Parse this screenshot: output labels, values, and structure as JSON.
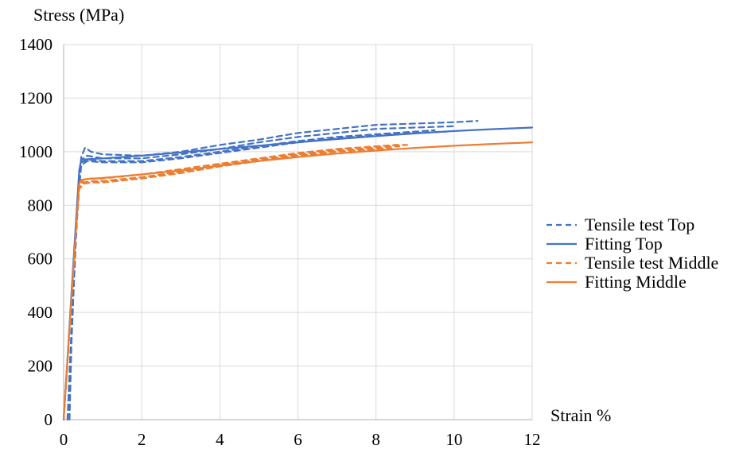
{
  "chart_data": {
    "type": "line",
    "title": "",
    "ylabel": "Stress (MPa)",
    "xlabel": "Strain %",
    "xlim": [
      0,
      12
    ],
    "ylim": [
      0,
      1400
    ],
    "x_ticks": [
      "0",
      "2",
      "4",
      "6",
      "8",
      "10",
      "12"
    ],
    "y_ticks": [
      "0",
      "200",
      "400",
      "600",
      "800",
      "1000",
      "1200",
      "1400"
    ],
    "grid": true,
    "legend_position": "right",
    "colors": {
      "top": "#4472c4",
      "middle": "#ed7d31",
      "grid": "#d9d9d9"
    },
    "series": [
      {
        "name": "Tensile test Top",
        "style": "dashed",
        "color": "#4472c4",
        "curves": [
          {
            "x": [
              0.15,
              0.2,
              0.3,
              0.45,
              0.55,
              0.7,
              1,
              2,
              3,
              4,
              5,
              6,
              7,
              8,
              9,
              10,
              10.6
            ],
            "y": [
              0,
              280,
              650,
              980,
              1015,
              1000,
              990,
              985,
              1000,
              1025,
              1045,
              1070,
              1085,
              1100,
              1105,
              1110,
              1115
            ]
          },
          {
            "x": [
              0.1,
              0.2,
              0.35,
              0.45,
              0.6,
              1,
              2,
              3,
              4,
              5,
              6,
              7,
              8,
              9,
              10
            ],
            "y": [
              0,
              300,
              800,
              970,
              985,
              975,
              975,
              990,
              1010,
              1035,
              1055,
              1070,
              1085,
              1090,
              1095
            ]
          },
          {
            "x": [
              0.1,
              0.2,
              0.35,
              0.45,
              0.6,
              1,
              2,
              3,
              4,
              5,
              6,
              7,
              8,
              9,
              9.5
            ],
            "y": [
              0,
              330,
              800,
              960,
              970,
              965,
              965,
              980,
              1000,
              1020,
              1040,
              1055,
              1065,
              1075,
              1080
            ]
          },
          {
            "x": [
              0.1,
              0.2,
              0.35,
              0.45,
              0.6,
              1,
              2,
              3,
              4,
              5,
              6,
              7,
              8,
              9,
              9.8
            ],
            "y": [
              0,
              320,
              780,
              950,
              965,
              960,
              960,
              975,
              995,
              1015,
              1035,
              1050,
              1060,
              1070,
              1075
            ]
          }
        ]
      },
      {
        "name": "Fitting Top",
        "style": "solid",
        "color": "#4472c4",
        "x": [
          0,
          0.1,
          0.2,
          0.3,
          0.4,
          0.45,
          0.6,
          1,
          2,
          3,
          4,
          5,
          6,
          7,
          8,
          9,
          10,
          11,
          12
        ],
        "y": [
          0,
          230,
          470,
          700,
          930,
          970,
          972,
          975,
          985,
          997,
          1010,
          1022,
          1035,
          1047,
          1058,
          1068,
          1077,
          1084,
          1090
        ]
      },
      {
        "name": "Tensile test Middle",
        "style": "dashed",
        "color": "#ed7d31",
        "curves": [
          {
            "x": [
              0,
              0.1,
              0.2,
              0.3,
              0.4,
              0.5,
              0.7,
              1,
              2,
              3,
              4,
              5,
              6,
              7,
              8,
              8.5,
              8.8
            ],
            "y": [
              0,
              220,
              450,
              680,
              870,
              895,
              900,
              900,
              915,
              935,
              955,
              975,
              995,
              1010,
              1020,
              1025,
              1025
            ]
          },
          {
            "x": [
              0,
              0.1,
              0.2,
              0.3,
              0.4,
              0.5,
              0.7,
              1,
              2,
              3,
              4,
              5,
              6,
              7,
              8,
              8.6
            ],
            "y": [
              0,
              220,
              450,
              680,
              870,
              885,
              890,
              890,
              905,
              925,
              950,
              970,
              990,
              1005,
              1015,
              1020
            ]
          },
          {
            "x": [
              0,
              0.1,
              0.2,
              0.3,
              0.4,
              0.5,
              0.7,
              1,
              2,
              3,
              4,
              5,
              6,
              7,
              8,
              8.4
            ],
            "y": [
              0,
              220,
              450,
              680,
              860,
              880,
              885,
              885,
              900,
              920,
              945,
              965,
              985,
              1000,
              1010,
              1012
            ]
          }
        ]
      },
      {
        "name": "Fitting Middle",
        "style": "solid",
        "color": "#ed7d31",
        "x": [
          0,
          0.1,
          0.2,
          0.3,
          0.4,
          0.45,
          0.6,
          1,
          2,
          3,
          4,
          5,
          6,
          7,
          8,
          9,
          10,
          11,
          12
        ],
        "y": [
          0,
          225,
          450,
          670,
          880,
          895,
          898,
          902,
          915,
          930,
          948,
          965,
          980,
          993,
          1004,
          1014,
          1022,
          1029,
          1035
        ]
      }
    ]
  }
}
